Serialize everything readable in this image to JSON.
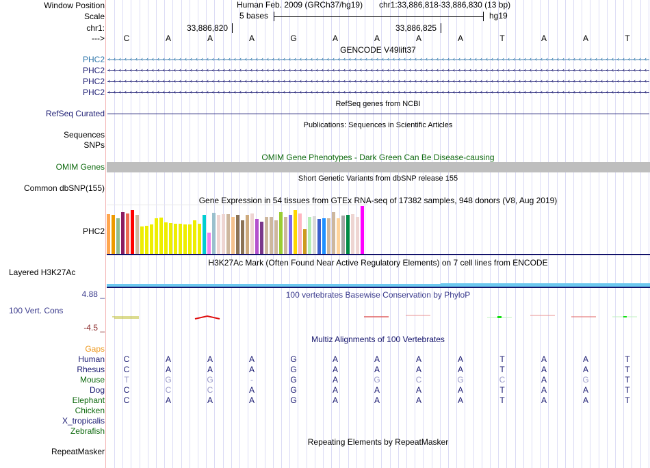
{
  "header": {
    "window_position_label": "Window Position",
    "scale_label": "Scale",
    "chrom_label": "chr1:",
    "strand_label": "--->",
    "assembly": "Human Feb. 2009 (GRCh37/hg19)",
    "position": "chr1:33,886,818-33,886,830 (13 bp)",
    "scale_text": "5 bases",
    "scale_db": "hg19",
    "coord_ticks": [
      "33,886,820",
      "33,886,825"
    ],
    "bases": [
      "C",
      "A",
      "A",
      "A",
      "G",
      "A",
      "A",
      "A",
      "A",
      "T",
      "A",
      "A",
      "T"
    ]
  },
  "tracks": {
    "gencode": {
      "title": "GENCODE V49lift37",
      "rows": [
        "PHC2",
        "PHC2",
        "PHC2",
        "PHC2"
      ],
      "colors": [
        "#2a73a8",
        "#1a1a72",
        "#1a1a72",
        "#1a1a72"
      ]
    },
    "refseq": {
      "label": "RefSeq Curated",
      "title": "RefSeq genes from NCBI"
    },
    "publications": {
      "title": "Publications: Sequences in Scientific Articles",
      "labels": [
        "Sequences",
        "SNPs"
      ]
    },
    "omim": {
      "label": "OMIM Genes",
      "title": "OMIM Gene Phenotypes - Dark Green Can Be Disease-causing",
      "color": "#0f6a0f"
    },
    "dbsnp": {
      "label": "Common dbSNP(155)",
      "title": "Short Genetic Variants from dbSNP release 155"
    },
    "gtex": {
      "label": "PHC2",
      "title": "Gene Expression in 54 tissues from GTEx RNA-seq of 17382 samples, 948 donors (V8, Aug 2019)",
      "values": [
        0.83,
        0.82,
        0.74,
        0.87,
        0.85,
        0.92,
        0.82,
        0.58,
        0.59,
        0.62,
        0.75,
        0.76,
        0.66,
        0.65,
        0.63,
        0.64,
        0.62,
        0.62,
        0.71,
        0.64,
        0.82,
        0.45,
        0.86,
        0.82,
        0.83,
        0.83,
        0.77,
        0.82,
        0.7,
        0.82,
        0.84,
        0.73,
        0.68,
        0.77,
        0.78,
        0.7,
        0.88,
        0.77,
        0.82,
        0.91,
        0.84,
        0.52,
        0.77,
        0.79,
        0.73,
        0.75,
        0.75,
        0.87,
        0.75,
        0.8,
        0.81,
        0.83,
        0.78,
        1.0
      ],
      "colors": [
        "#FFA54F",
        "#EE9A00",
        "#8FBC8F",
        "#8B1C62",
        "#EE6A50",
        "#FF0000",
        "#CDB79E",
        "#EEEE00",
        "#EEEE00",
        "#EEEE00",
        "#EEEE00",
        "#EEEE00",
        "#EEEE00",
        "#EEEE00",
        "#EEEE00",
        "#EEEE00",
        "#EEEE00",
        "#EEEE00",
        "#EEEE00",
        "#EEEE00",
        "#00CED1",
        "#EE82EE",
        "#9AC0CD",
        "#EED5D2",
        "#EED5D2",
        "#CDB79E",
        "#F4C28D",
        "#8B7355",
        "#8B7355",
        "#CDAA7D",
        "#EED5D2",
        "#B452CD",
        "#7A378B",
        "#CDB79E",
        "#CDB79E",
        "#CDB79E",
        "#9ACD32",
        "#CDB79E",
        "#7B68EE",
        "#FFD700",
        "#FFB6C1",
        "#CD9B1D",
        "#B4EEB4",
        "#D9D9D9",
        "#3A5FCD",
        "#1E90FF",
        "#CDB79E",
        "#CDB79E",
        "#FFD39B",
        "#A6A6A6",
        "#008B45",
        "#EED5D2",
        "#EED5D2",
        "#FF00FF"
      ]
    },
    "h3k27ac": {
      "label": "Layered H3K27Ac",
      "title": "H3K27Ac Mark (Often Found Near Active Regulatory Elements) on 7 cell lines from ENCODE"
    },
    "phylop": {
      "label": "100 Vert. Cons",
      "title": "100 vertebrates Basewise Conservation by PhyloP",
      "max": "4.88 _",
      "min": "-4.5 _"
    },
    "multiz": {
      "title": "Multiz Alignments of 100 Vertebrates",
      "gaps_label": "Gaps",
      "species": [
        {
          "name": "Human",
          "color": "#1a1a72",
          "seq": [
            "C",
            "A",
            "A",
            "A",
            "G",
            "A",
            "A",
            "A",
            "A",
            "T",
            "A",
            "A",
            "T"
          ]
        },
        {
          "name": "Rhesus",
          "color": "#1a1a72",
          "seq": [
            "C",
            "A",
            "A",
            "A",
            "G",
            "A",
            "A",
            "A",
            "A",
            "T",
            "A",
            "A",
            "T"
          ]
        },
        {
          "name": "Mouse",
          "color": "#0f6a0f",
          "seq": [
            "T",
            "G",
            "G",
            "-",
            "G",
            "A",
            "G",
            "C",
            "G",
            "C",
            "A",
            "G",
            "T"
          ]
        },
        {
          "name": "Dog",
          "color": "#1a1a72",
          "seq": [
            "C",
            "C",
            "C",
            "A",
            "G",
            "A",
            "A",
            "A",
            "A",
            "T",
            "A",
            "A",
            "T"
          ]
        },
        {
          "name": "Elephant",
          "color": "#0f6a0f",
          "seq": [
            "C",
            "A",
            "A",
            "A",
            "G",
            "A",
            "A",
            "A",
            "A",
            "T",
            "A",
            "A",
            "T"
          ]
        },
        {
          "name": "Chicken",
          "color": "#0f6a0f",
          "seq": []
        },
        {
          "name": "X_tropicalis",
          "color": "#1a1a72",
          "seq": []
        },
        {
          "name": "Zebrafish",
          "color": "#0f6a0f",
          "seq": []
        }
      ]
    },
    "repeatmasker": {
      "label": "RepeatMasker",
      "title": "Repeating Elements by RepeatMasker"
    }
  }
}
